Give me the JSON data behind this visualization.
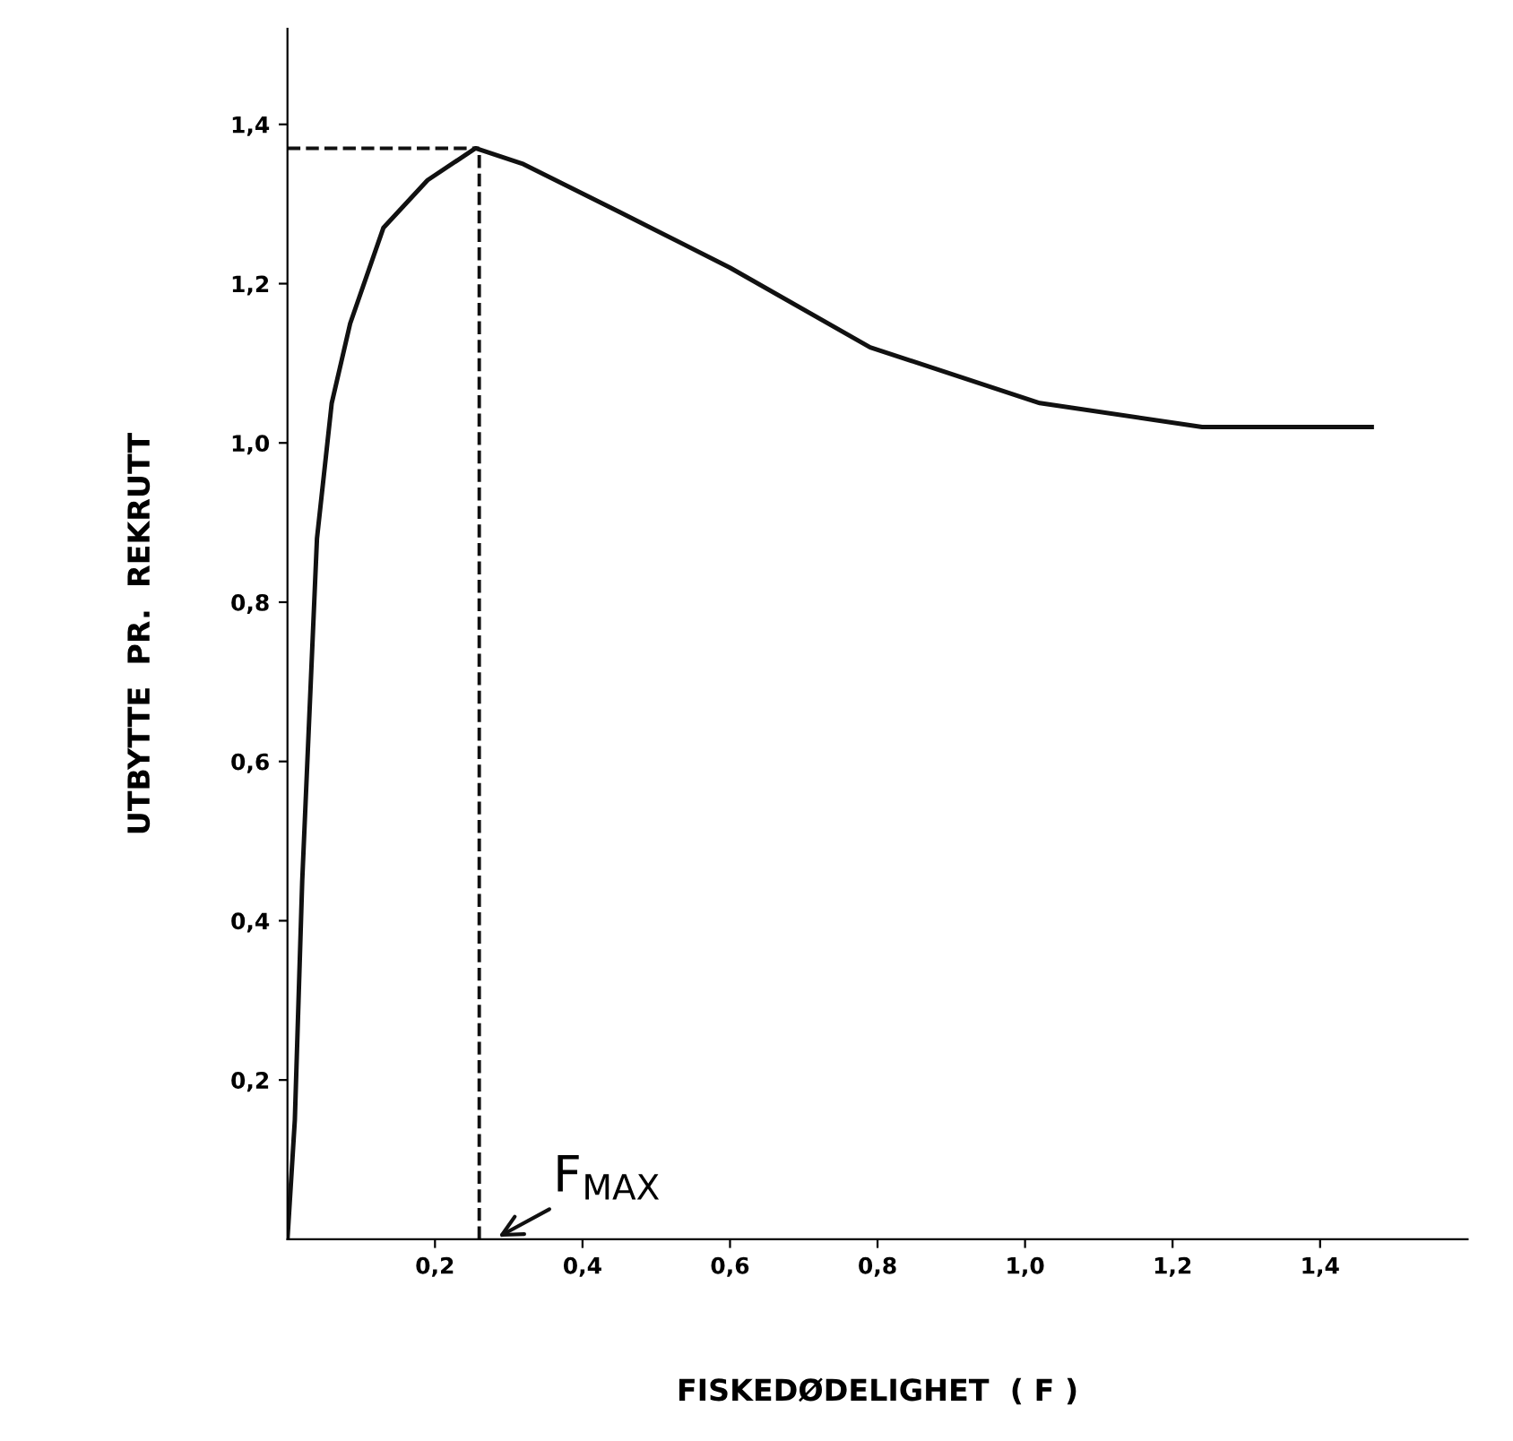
{
  "chart_data": {
    "type": "line",
    "xlabel": "FISKEDØDELIGHET  ( F )",
    "ylabel": "UTBYTTE  PR.  REKRUTT",
    "x": [
      0.0,
      0.01,
      0.02,
      0.04,
      0.06,
      0.085,
      0.13,
      0.19,
      0.255,
      0.32,
      0.45,
      0.6,
      0.79,
      1.02,
      1.24,
      1.4,
      1.47
    ],
    "series": [
      {
        "color": "#111111",
        "values": [
          0.0,
          0.15,
          0.45,
          0.88,
          1.05,
          1.15,
          1.27,
          1.33,
          1.37,
          1.35,
          1.29,
          1.22,
          1.12,
          1.05,
          1.02,
          1.02,
          1.02
        ]
      }
    ],
    "xlim": [
      0,
      1.6
    ],
    "ylim": [
      0,
      1.52
    ],
    "xticks": [
      {
        "value": 0.2,
        "label": "0,2"
      },
      {
        "value": 0.4,
        "label": "0,4"
      },
      {
        "value": 0.6,
        "label": "0,6"
      },
      {
        "value": 0.8,
        "label": "0,8"
      },
      {
        "value": 1.0,
        "label": "1,0"
      },
      {
        "value": 1.2,
        "label": "1,2"
      },
      {
        "value": 1.4,
        "label": "1,4"
      }
    ],
    "yticks": [
      {
        "value": 0.2,
        "label": "0,2"
      },
      {
        "value": 0.4,
        "label": "0,4"
      },
      {
        "value": 0.6,
        "label": "0,6"
      },
      {
        "value": 0.8,
        "label": "0,8"
      },
      {
        "value": 1.0,
        "label": "1,0"
      },
      {
        "value": 1.2,
        "label": "1,2"
      },
      {
        "value": 1.4,
        "label": "1,4"
      }
    ],
    "ref_lines": [
      {
        "axis": "y",
        "value": 1.37,
        "line_style": "dashed"
      },
      {
        "axis": "x",
        "value": 0.26,
        "line_style": "dashed"
      }
    ],
    "annotations": [
      "F$_{MAX}$"
    ],
    "grid": false,
    "legend": false,
    "marker": "none",
    "line_style": "solid"
  }
}
